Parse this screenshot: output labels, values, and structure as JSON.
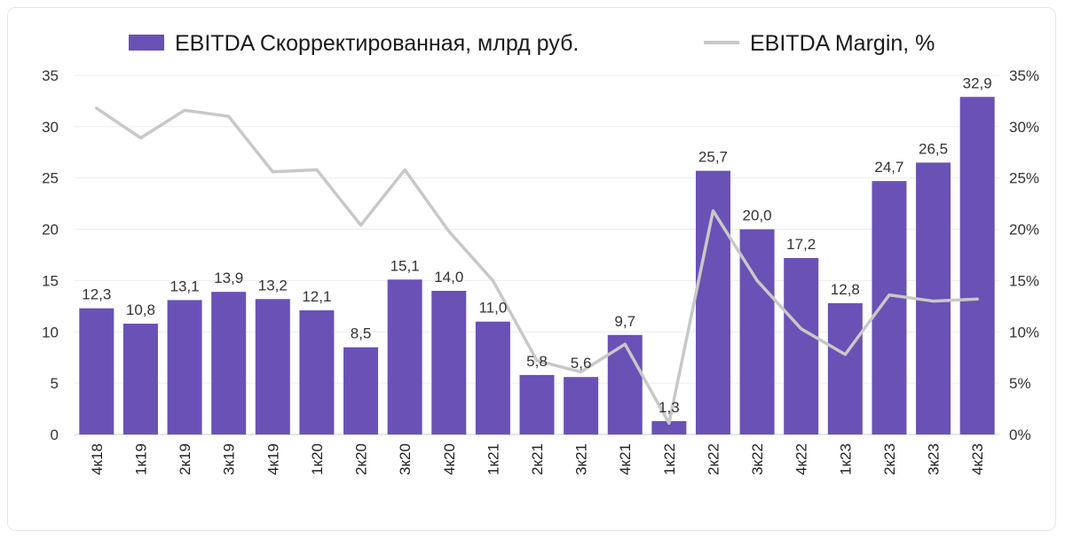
{
  "chart_data": {
    "type": "bar",
    "title": "",
    "categories": [
      "4к18",
      "1к19",
      "2к19",
      "3к19",
      "4к19",
      "1к20",
      "2к20",
      "3к20",
      "4к20",
      "1к21",
      "2к21",
      "3к21",
      "4к21",
      "1к22",
      "2к22",
      "3к22",
      "4к22",
      "1к23",
      "2к23",
      "3к23",
      "4к23"
    ],
    "series": [
      {
        "name": "EBITDA Скорректированная, млрд руб.",
        "type": "bar",
        "axis": "left",
        "values": [
          12.3,
          10.8,
          13.1,
          13.9,
          13.2,
          12.1,
          8.5,
          15.1,
          14.0,
          11.0,
          5.8,
          5.6,
          9.7,
          1.3,
          25.7,
          20.0,
          17.2,
          12.8,
          24.7,
          26.5,
          32.9
        ],
        "labels": [
          "12,3",
          "10,8",
          "13,1",
          "13,9",
          "13,2",
          "12,1",
          "8,5",
          "15,1",
          "14,0",
          "11,0",
          "5,8",
          "5,6",
          "9,7",
          "1,3",
          "25,7",
          "20,0",
          "17,2",
          "12,8",
          "24,7",
          "26,5",
          "32,9"
        ],
        "color": "#6A51B5"
      },
      {
        "name": "EBITDA Margin, %",
        "type": "line",
        "axis": "right",
        "values": [
          31.8,
          28.9,
          31.6,
          31.0,
          25.6,
          25.8,
          20.4,
          25.8,
          19.8,
          15.0,
          7.2,
          6.1,
          8.8,
          1.1,
          21.8,
          15.0,
          10.3,
          7.8,
          13.6,
          13.0,
          13.2
        ],
        "color": "#C8C8C8"
      }
    ],
    "y_left": {
      "min": 0,
      "max": 35,
      "ticks": [
        "0",
        "5",
        "10",
        "15",
        "20",
        "25",
        "30",
        "35"
      ]
    },
    "y_right": {
      "min": 0,
      "max": 35,
      "ticks": [
        "0%",
        "5%",
        "10%",
        "15%",
        "20%",
        "25%",
        "30%",
        "35%"
      ]
    },
    "grid": true,
    "legend": "top-center"
  }
}
